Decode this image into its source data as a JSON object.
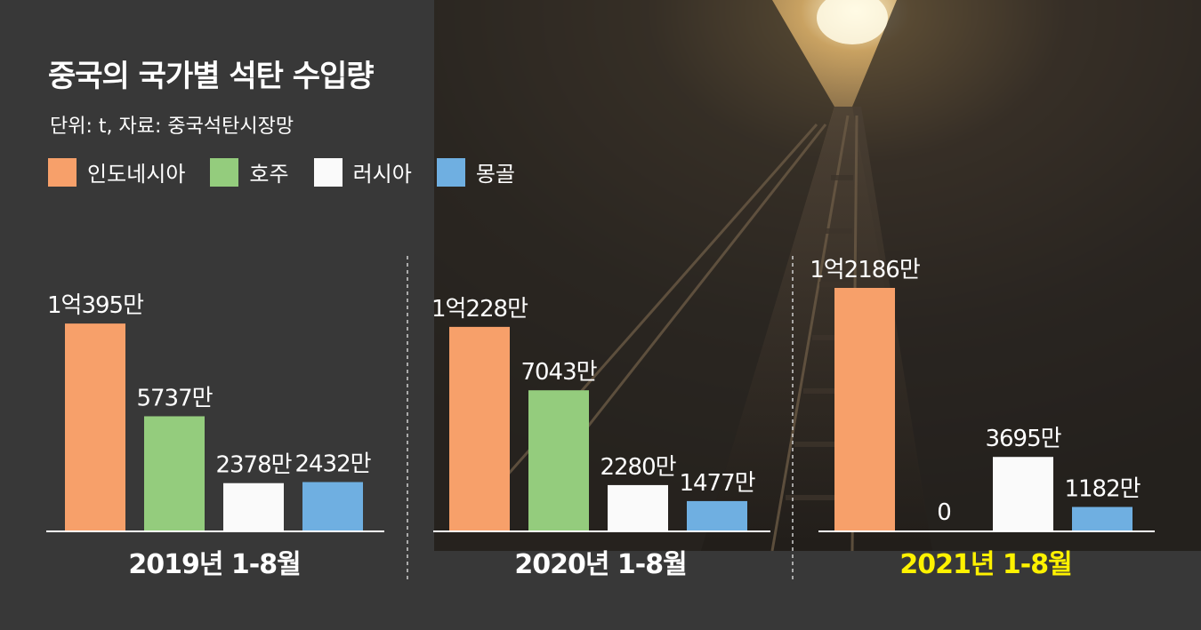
{
  "title": "중국의 국가별 석탄 수입량",
  "subtitle": "단위: t, 자료: 중국석탄시장망",
  "colors": {
    "인도네시아": "#f7a06a",
    "호주": "#94cc7d",
    "러시아": "#fafafa",
    "몽골": "#6fafe1",
    "period_highlight": "#fff200"
  },
  "legend": [
    "인도네시아",
    "호주",
    "러시아",
    "몽골"
  ],
  "chart_data": {
    "type": "bar",
    "title": "중국의 국가별 석탄 수입량",
    "unit": "t",
    "source": "중국석탄시장망",
    "series": [
      "인도네시아",
      "호주",
      "러시아",
      "몽골"
    ],
    "groups": [
      {
        "label": "2019년 1-8월",
        "highlight": false,
        "values": [
          103950000,
          57370000,
          23780000,
          24320000
        ],
        "labels": [
          "1억395만",
          "5737만",
          "2378만",
          "2432만"
        ]
      },
      {
        "label": "2020년 1-8월",
        "highlight": false,
        "values": [
          102280000,
          70430000,
          22800000,
          14770000
        ],
        "labels": [
          "1억228만",
          "7043만",
          "2280만",
          "1477만"
        ]
      },
      {
        "label": "2021년 1-8월",
        "highlight": true,
        "values": [
          121860000,
          0,
          36950000,
          11820000
        ],
        "labels": [
          "1억2186만",
          "0",
          "3695만",
          "1182만"
        ]
      }
    ]
  }
}
